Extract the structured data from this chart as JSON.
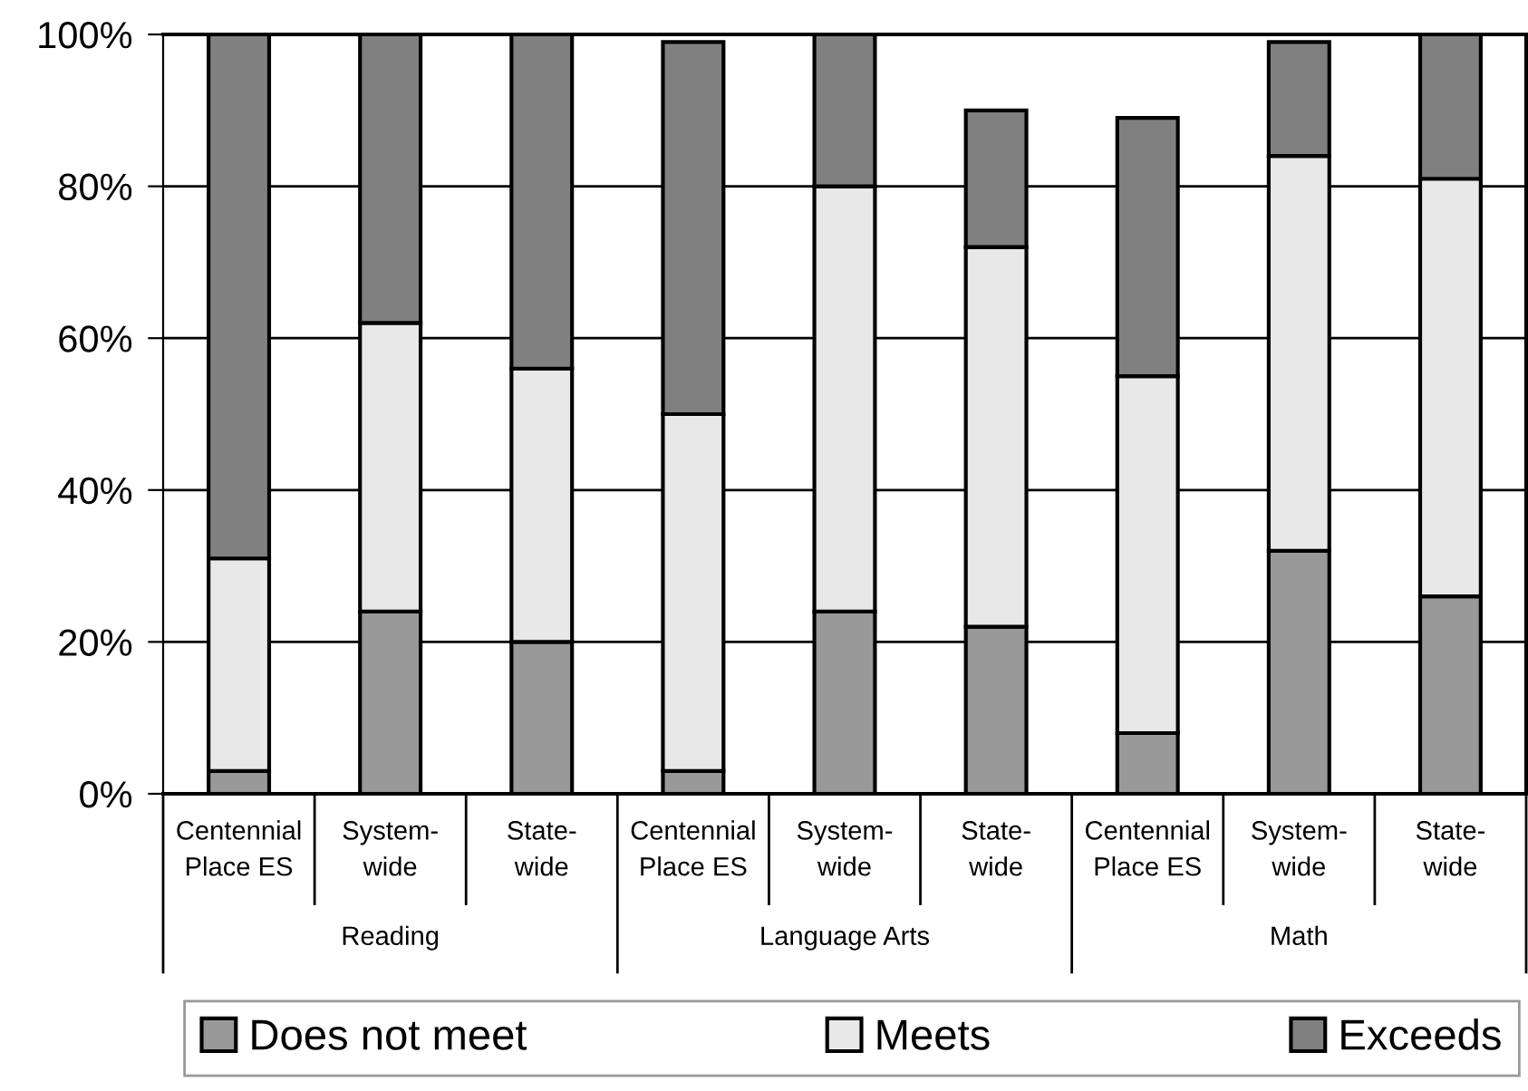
{
  "chart_data": {
    "type": "bar",
    "stacked": true,
    "categories": [
      "Centennial Place ES",
      "System-wide",
      "State-wide",
      "Centennial Place ES",
      "System-wide",
      "State-wide",
      "Centennial Place ES",
      "System-wide",
      "State-wide"
    ],
    "annotations": [
      "Reading",
      "Language Arts",
      "Math"
    ],
    "series": [
      {
        "name": "Does not meet",
        "color": "#999999",
        "values": [
          3,
          24,
          20,
          3,
          24,
          22,
          8,
          32,
          26
        ]
      },
      {
        "name": "Meets",
        "color": "#e8e8e8",
        "values": [
          28,
          38,
          36,
          47,
          56,
          50,
          47,
          52,
          55
        ]
      },
      {
        "name": "Exceeds",
        "color": "#808080",
        "values": [
          69,
          38,
          44,
          49,
          20,
          18,
          34,
          15,
          19
        ]
      }
    ],
    "ylim": [
      0,
      100
    ],
    "yticks": [
      {
        "value": 0,
        "label": "0%"
      },
      {
        "value": 20,
        "label": "20%"
      },
      {
        "value": 40,
        "label": "40%"
      },
      {
        "value": 60,
        "label": "60%"
      },
      {
        "value": 80,
        "label": "80%"
      },
      {
        "value": 100,
        "label": "100%"
      }
    ],
    "grid": "y",
    "legend": "bottom"
  }
}
